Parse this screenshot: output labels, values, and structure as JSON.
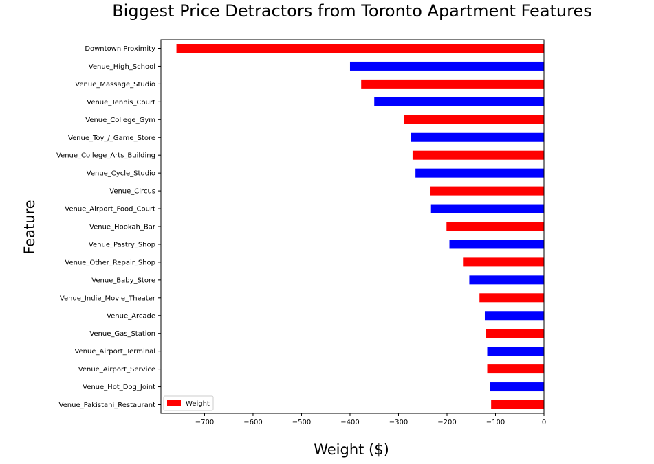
{
  "chart_data": {
    "type": "bar",
    "orientation": "horizontal",
    "title": "Biggest Price Detractors from Toronto Apartment Features",
    "xlabel": "Weight ($)",
    "ylabel": "Feature",
    "xlim": [
      -790,
      0
    ],
    "xticks": [
      -700,
      -600,
      -500,
      -400,
      -300,
      -200,
      -100,
      0
    ],
    "xtick_labels": [
      "−700",
      "−600",
      "−500",
      "−400",
      "−300",
      "−200",
      "−100",
      "0"
    ],
    "grid": false,
    "legend": {
      "position": "lower-left",
      "entries": [
        "Weight"
      ]
    },
    "bar_colors": [
      "#ff0000",
      "#0000ff"
    ],
    "categories": [
      "Downtown Proximity",
      "Venue_High_School",
      "Venue_Massage_Studio",
      "Venue_Tennis_Court",
      "Venue_College_Gym",
      "Venue_Toy_/_Game_Store",
      "Venue_College_Arts_Building",
      "Venue_Cycle_Studio",
      "Venue_Circus",
      "Venue_Airport_Food_Court",
      "Venue_Hookah_Bar",
      "Venue_Pastry_Shop",
      "Venue_Other_Repair_Shop",
      "Venue_Baby_Store",
      "Venue_Indie_Movie_Theater",
      "Venue_Arcade",
      "Venue_Gas_Station",
      "Venue_Airport_Terminal",
      "Venue_Airport_Service",
      "Venue_Hot_Dog_Joint",
      "Venue_Pakistani_Restaurant"
    ],
    "series": [
      {
        "name": "Weight",
        "values": [
          -758,
          -400,
          -377,
          -350,
          -289,
          -275,
          -271,
          -265,
          -234,
          -233,
          -201,
          -195,
          -167,
          -154,
          -133,
          -122,
          -120,
          -117,
          -117,
          -111,
          -109
        ]
      }
    ]
  }
}
